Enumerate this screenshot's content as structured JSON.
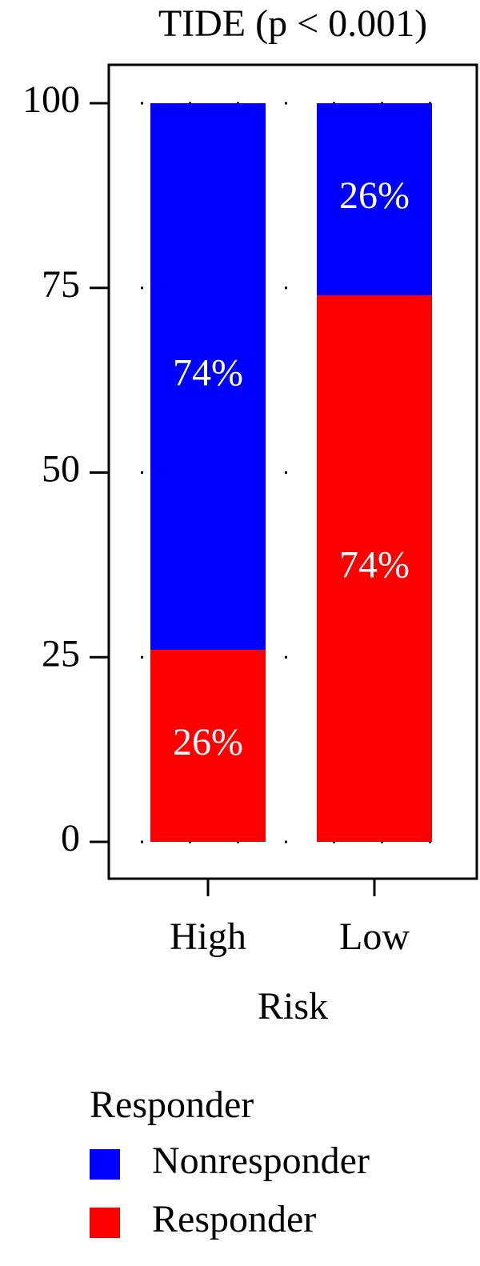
{
  "chart_data": {
    "type": "stacked_bar",
    "title": "TIDE (p < 0.001)",
    "categories": [
      "High",
      "Low"
    ],
    "x_label": "Risk",
    "series": [
      {
        "name": "Nonresponder",
        "color": "#0000ff",
        "values": [
          74,
          26
        ],
        "value_labels": [
          "74%",
          "26%"
        ]
      },
      {
        "name": "Responder",
        "color": "#ff0000",
        "values": [
          26,
          74
        ],
        "value_labels": [
          "26%",
          "74%"
        ]
      }
    ],
    "legend_title": "Responder",
    "ylim": [
      0,
      100
    ],
    "yticks": [
      0,
      25,
      50,
      75,
      100
    ],
    "grid": true
  }
}
